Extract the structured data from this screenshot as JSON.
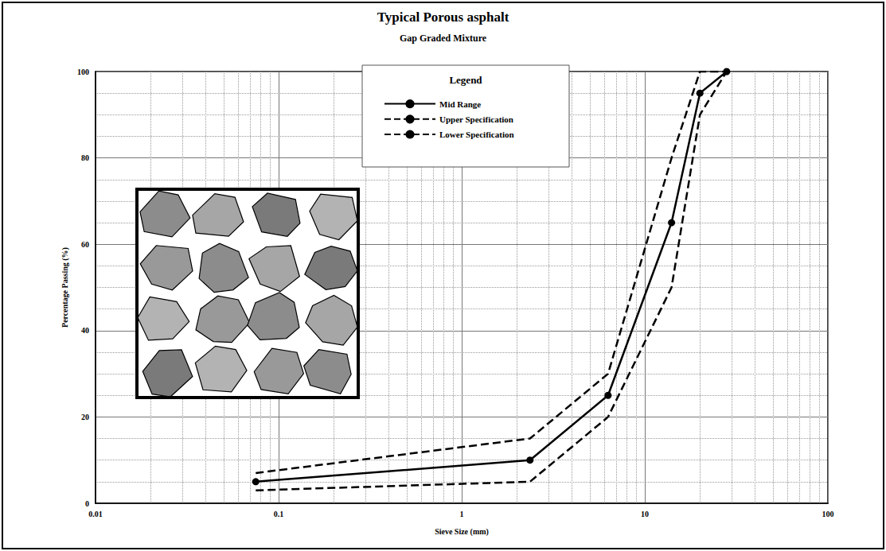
{
  "chart_data": {
    "type": "line",
    "title": "Typical Porous asphalt",
    "subtitle": "Gap Graded Mixture",
    "x_label": "Sieve Size (mm)",
    "y_label": "Percentage Passing (%)",
    "legend_title": "Legend",
    "legend": "top",
    "log": "x",
    "grid": true,
    "xlim": [
      0.01,
      100
    ],
    "xticks": [
      0.01,
      0.1,
      1,
      10,
      100
    ],
    "ylim": [
      0,
      100
    ],
    "yticks": [
      0,
      20,
      40,
      60,
      80,
      100
    ],
    "series": [
      {
        "name": "Mid Range",
        "color": "#000000",
        "marker": "circle",
        "line_style": "solid",
        "x": [
          0.075,
          2.36,
          6.3,
          14,
          20,
          28
        ],
        "values": [
          5,
          10,
          25,
          65,
          95,
          100
        ]
      },
      {
        "name": "Upper Specification",
        "color": "#000000",
        "marker": "none",
        "line_style": "dashed",
        "x": [
          0.075,
          2.36,
          6.3,
          14,
          20,
          28
        ],
        "values": [
          7,
          15,
          30,
          80,
          100,
          100
        ]
      },
      {
        "name": "Lower Specification",
        "color": "#000000",
        "marker": "none",
        "line_style": "dashed",
        "x": [
          0.075,
          2.36,
          6.3,
          14,
          20,
          28
        ],
        "values": [
          3,
          5,
          20,
          50,
          90,
          100
        ]
      }
    ]
  }
}
